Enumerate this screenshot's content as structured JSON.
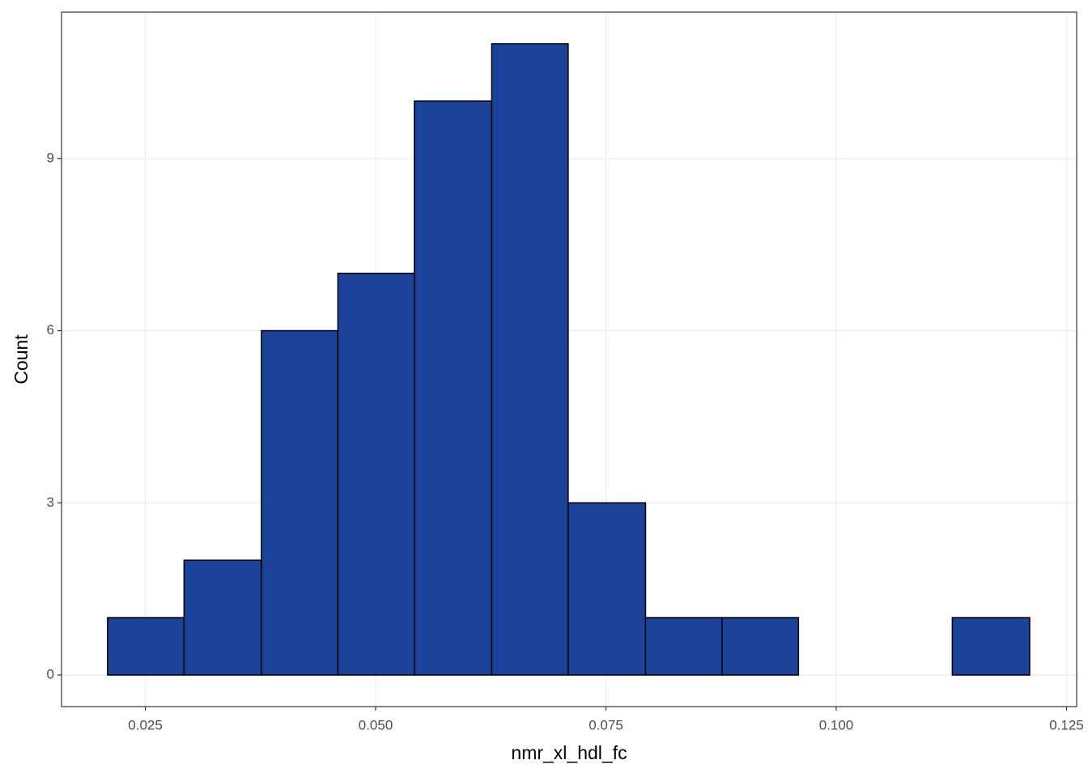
{
  "chart_data": {
    "type": "histogram",
    "x_label": "nmr_xl_hdl_fc",
    "y_label": "Count",
    "bins": [
      0.0209,
      0.0292,
      0.0376,
      0.0459,
      0.0542,
      0.0626,
      0.0709,
      0.0793,
      0.0876,
      0.0959,
      0.1043,
      0.1126,
      0.121
    ],
    "values": [
      1,
      2,
      6,
      7,
      10,
      11,
      3,
      1,
      1,
      0,
      0,
      1
    ],
    "color": "#1a4399",
    "edge_color": "#000000",
    "xlim": [
      0.0159,
      0.1261
    ],
    "ylim": [
      -0.55,
      11.55
    ],
    "xticks": [
      0.025,
      {
        "value": 0.05,
        "label": "0.050"
      },
      0.075,
      {
        "value": 0.1,
        "label": "0.100"
      },
      0.125
    ],
    "yticks": [
      0,
      3,
      6,
      9
    ],
    "grid": true
  }
}
